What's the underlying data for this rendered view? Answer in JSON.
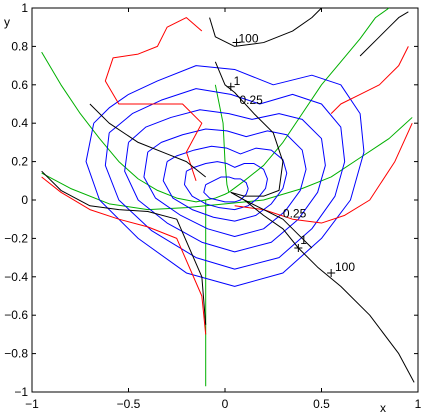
{
  "chart_data": {
    "type": "line",
    "title": "",
    "xlabel": "x",
    "ylabel": "y",
    "xlim": [
      -1,
      1
    ],
    "ylim": [
      -1,
      1
    ],
    "xticks": [
      -1,
      -0.5,
      0,
      0.5,
      1
    ],
    "xtick_labels": [
      "−1",
      "−0.5",
      "0",
      "0.5",
      "1"
    ],
    "yticks": [
      -1,
      -0.8,
      -0.6,
      -0.4,
      -0.2,
      0,
      0.2,
      0.4,
      0.6,
      0.8,
      1
    ],
    "ytick_labels": [
      "−1",
      "−0.8",
      "−0.6",
      "−0.4",
      "−0.2",
      "0",
      "0.2",
      "0.4",
      "0.6",
      "0.8",
      "1"
    ],
    "grid": false,
    "legend": "none",
    "colors": {
      "green": "#00b000",
      "blue": "#0000ff",
      "red": "#ff0000",
      "black": "#000000",
      "cyan": "#00e0e0"
    },
    "annotations": [
      {
        "text": "100",
        "x": 0.07,
        "y": 0.82
      },
      {
        "text": "1",
        "x": 0.045,
        "y": 0.6
      },
      {
        "text": "0.25",
        "x": 0.075,
        "y": 0.5
      },
      {
        "text": "0.25",
        "x": 0.3,
        "y": -0.09
      },
      {
        "text": "1",
        "x": 0.39,
        "y": -0.23
      },
      {
        "text": "100",
        "x": 0.57,
        "y": -0.37
      }
    ],
    "markers": [
      {
        "x": 0.06,
        "y": 0.82
      },
      {
        "x": 0.03,
        "y": 0.59
      },
      {
        "x": 0.38,
        "y": -0.25
      },
      {
        "x": 0.55,
        "y": -0.38
      }
    ],
    "series": [
      {
        "color": "green",
        "x": [
          -0.95,
          -0.85,
          -0.75,
          -0.65,
          -0.55,
          -0.45,
          -0.35,
          -0.25,
          -0.15,
          -0.1,
          -0.05,
          0,
          0.02
        ],
        "y": [
          0.77,
          0.6,
          0.45,
          0.32,
          0.2,
          0.11,
          0.05,
          0.01,
          -0.01,
          0.0,
          0.01,
          0.03,
          0.04
        ]
      },
      {
        "color": "green",
        "x": [
          0.02,
          0.1,
          0.2,
          0.3,
          0.4,
          0.5,
          0.6,
          0.7,
          0.78,
          0.85
        ],
        "y": [
          0.04,
          0.1,
          0.18,
          0.3,
          0.45,
          0.6,
          0.72,
          0.84,
          0.95,
          1.0
        ]
      },
      {
        "color": "green",
        "x": [
          0.0,
          0.2,
          0.4,
          0.55,
          0.7,
          0.85,
          0.97
        ],
        "y": [
          -0.02,
          0.0,
          0.06,
          0.12,
          0.22,
          0.32,
          0.43
        ]
      },
      {
        "color": "green",
        "x": [
          -0.95,
          -0.8,
          -0.6,
          -0.4,
          -0.2,
          0.0
        ],
        "y": [
          0.14,
          0.06,
          -0.02,
          -0.05,
          -0.04,
          -0.02
        ]
      },
      {
        "color": "green",
        "x": [
          -0.1,
          -0.1,
          -0.1,
          -0.1,
          -0.1,
          -0.1
        ],
        "y": [
          -0.97,
          -0.7,
          -0.45,
          -0.25,
          -0.1,
          0.0
        ]
      },
      {
        "color": "green",
        "x": [
          -0.05,
          -0.01,
          0.0,
          0.01,
          0.02
        ],
        "y": [
          0.6,
          0.4,
          0.2,
          0.08,
          0.04
        ]
      },
      {
        "color": "blue",
        "x": [
          -0.68,
          -0.72,
          -0.65,
          -0.45,
          -0.2,
          0.05,
          0.3,
          0.5,
          0.65,
          0.72,
          0.7,
          0.6,
          0.45,
          0.25,
          0.05,
          -0.15,
          -0.35,
          -0.5,
          -0.6,
          -0.68
        ],
        "y": [
          0.4,
          0.2,
          0.0,
          -0.2,
          -0.38,
          -0.45,
          -0.38,
          -0.2,
          0.0,
          0.25,
          0.45,
          0.6,
          0.65,
          0.6,
          0.68,
          0.7,
          0.62,
          0.55,
          0.48,
          0.4
        ]
      },
      {
        "color": "blue",
        "x": [
          -0.6,
          -0.62,
          -0.55,
          -0.38,
          -0.15,
          0.05,
          0.28,
          0.45,
          0.57,
          0.62,
          0.6,
          0.5,
          0.35,
          0.18,
          0.03,
          -0.15,
          -0.33,
          -0.48,
          -0.6
        ],
        "y": [
          0.35,
          0.18,
          0.0,
          -0.16,
          -0.3,
          -0.36,
          -0.3,
          -0.15,
          0.02,
          0.2,
          0.38,
          0.5,
          0.55,
          0.5,
          0.55,
          0.58,
          0.52,
          0.45,
          0.35
        ]
      },
      {
        "color": "blue",
        "x": [
          -0.5,
          -0.52,
          -0.45,
          -0.3,
          -0.12,
          0.05,
          0.24,
          0.38,
          0.48,
          0.52,
          0.5,
          0.4,
          0.28,
          0.14,
          0.02,
          -0.13,
          -0.28,
          -0.41,
          -0.5
        ],
        "y": [
          0.3,
          0.15,
          0.0,
          -0.12,
          -0.22,
          -0.27,
          -0.22,
          -0.1,
          0.04,
          0.18,
          0.32,
          0.42,
          0.45,
          0.42,
          0.45,
          0.47,
          0.43,
          0.38,
          0.3
        ]
      },
      {
        "color": "blue",
        "x": [
          -0.4,
          -0.42,
          -0.36,
          -0.23,
          -0.09,
          0.05,
          0.2,
          0.31,
          0.39,
          0.42,
          0.4,
          0.32,
          0.22,
          0.11,
          0.01,
          -0.1,
          -0.22,
          -0.33,
          -0.4
        ],
        "y": [
          0.25,
          0.12,
          0.01,
          -0.08,
          -0.15,
          -0.19,
          -0.15,
          -0.06,
          0.05,
          0.16,
          0.26,
          0.34,
          0.36,
          0.33,
          0.36,
          0.37,
          0.34,
          0.3,
          0.25
        ]
      },
      {
        "color": "blue",
        "x": [
          -0.3,
          -0.32,
          -0.27,
          -0.17,
          -0.06,
          0.05,
          0.16,
          0.24,
          0.3,
          0.32,
          0.3,
          0.24,
          0.16,
          0.08,
          0.01,
          -0.07,
          -0.16,
          -0.25,
          -0.3
        ],
        "y": [
          0.2,
          0.1,
          0.01,
          -0.05,
          -0.09,
          -0.11,
          -0.08,
          -0.02,
          0.06,
          0.14,
          0.21,
          0.26,
          0.27,
          0.24,
          0.27,
          0.28,
          0.26,
          0.23,
          0.2
        ]
      },
      {
        "color": "blue",
        "x": [
          -0.2,
          -0.21,
          -0.17,
          -0.1,
          -0.03,
          0.05,
          0.12,
          0.17,
          0.21,
          0.22,
          0.2,
          0.15,
          0.1,
          0.05,
          0.01,
          -0.04,
          -0.1,
          -0.16,
          -0.2
        ],
        "y": [
          0.15,
          0.08,
          0.02,
          -0.02,
          -0.04,
          -0.05,
          -0.03,
          0.01,
          0.06,
          0.11,
          0.16,
          0.19,
          0.19,
          0.17,
          0.19,
          0.2,
          0.19,
          0.17,
          0.15
        ]
      },
      {
        "color": "blue",
        "x": [
          -0.1,
          -0.11,
          -0.08,
          -0.04,
          0.0,
          0.05,
          0.08,
          0.11,
          0.12,
          0.11,
          0.08,
          0.05,
          0.02,
          -0.02,
          -0.06,
          -0.1
        ],
        "y": [
          0.08,
          0.04,
          0.01,
          0.0,
          -0.01,
          -0.01,
          0.0,
          0.03,
          0.06,
          0.09,
          0.11,
          0.11,
          0.12,
          0.12,
          0.1,
          0.08
        ]
      },
      {
        "color": "red",
        "x": [
          -0.95,
          -0.85,
          -0.7,
          -0.55,
          -0.4,
          -0.25,
          -0.12,
          -0.1
        ],
        "y": [
          0.12,
          0.04,
          -0.05,
          -0.1,
          -0.14,
          -0.2,
          -0.5,
          -0.7
        ]
      },
      {
        "color": "red",
        "x": [
          -0.15,
          -0.2,
          -0.12,
          -0.22,
          -0.4,
          -0.55,
          -0.62,
          -0.58,
          -0.45,
          -0.35,
          -0.3,
          -0.2,
          -0.12
        ],
        "y": [
          0.1,
          0.25,
          0.4,
          0.5,
          0.5,
          0.5,
          0.62,
          0.74,
          0.76,
          0.8,
          0.9,
          0.95,
          0.88
        ]
      },
      {
        "color": "red",
        "x": [
          0.05,
          0.2,
          0.35,
          0.5,
          0.62,
          0.75,
          0.88,
          0.97
        ],
        "y": [
          -0.03,
          -0.05,
          -0.1,
          -0.12,
          -0.08,
          0.0,
          0.2,
          0.4
        ]
      },
      {
        "color": "red",
        "x": [
          0.55,
          0.6,
          0.7,
          0.8,
          0.9,
          0.95
        ],
        "y": [
          0.45,
          0.5,
          0.55,
          0.6,
          0.7,
          0.8
        ]
      },
      {
        "color": "black",
        "x": [
          -0.08,
          -0.05,
          0.05,
          0.2,
          0.35,
          0.45,
          0.5
        ],
        "y": [
          0.95,
          0.85,
          0.8,
          0.82,
          0.88,
          0.95,
          1.0
        ]
      },
      {
        "color": "black",
        "x": [
          -0.05,
          0.0,
          0.05,
          0.15,
          0.25,
          0.3,
          0.28,
          0.2,
          0.1,
          0.03
        ],
        "y": [
          0.72,
          0.6,
          0.56,
          0.45,
          0.35,
          0.2,
          0.05,
          0.02,
          0.02,
          0.04
        ]
      },
      {
        "color": "black",
        "x": [
          0.03,
          0.1,
          0.2,
          0.3,
          0.38,
          0.48,
          0.6,
          0.75,
          0.9,
          0.98
        ],
        "y": [
          0.04,
          0.0,
          -0.08,
          -0.15,
          -0.25,
          -0.35,
          -0.45,
          -0.6,
          -0.8,
          -0.95
        ]
      },
      {
        "color": "black",
        "x": [
          0.03,
          0.1,
          0.2,
          0.3,
          0.38,
          0.45
        ],
        "y": [
          0.04,
          0.0,
          -0.05,
          -0.1,
          -0.18,
          -0.25
        ]
      },
      {
        "color": "black",
        "x": [
          -0.95,
          -0.85,
          -0.7,
          -0.55,
          -0.4,
          -0.25,
          -0.12,
          -0.1
        ],
        "y": [
          0.15,
          0.05,
          -0.03,
          -0.05,
          -0.06,
          -0.1,
          -0.4,
          -0.65
        ]
      },
      {
        "color": "black",
        "x": [
          -0.7,
          -0.6,
          -0.45,
          -0.3,
          -0.2,
          -0.1
        ],
        "y": [
          0.5,
          0.4,
          0.3,
          0.24,
          0.2,
          0.12
        ]
      },
      {
        "color": "black",
        "x": [
          0.7,
          0.8,
          0.85,
          0.9,
          0.95
        ],
        "y": [
          0.75,
          0.85,
          0.9,
          0.95,
          0.98
        ]
      }
    ]
  }
}
